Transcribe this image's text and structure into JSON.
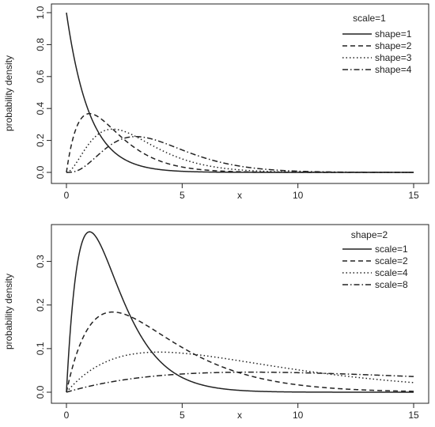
{
  "chart_data": [
    {
      "type": "line",
      "title": "",
      "xlabel": "x",
      "ylabel": "probability density",
      "xlim": [
        0,
        15
      ],
      "ylim": [
        0,
        1.0
      ],
      "xticks": [
        0,
        5,
        10,
        15
      ],
      "yticks": [
        0.0,
        0.2,
        0.4,
        0.6,
        0.8,
        1.0
      ],
      "ytick_labels": [
        "0.0",
        "0.2",
        "0.4",
        "0.6",
        "0.8",
        "1.0"
      ],
      "legend_title": "scale=1",
      "legend_position": "top-right",
      "grid": false,
      "series": [
        {
          "name": "shape=1",
          "dash": "solid",
          "shape": 1,
          "scale": 1
        },
        {
          "name": "shape=2",
          "dash": "dashed",
          "shape": 2,
          "scale": 1
        },
        {
          "name": "shape=3",
          "dash": "dotted",
          "shape": 3,
          "scale": 1
        },
        {
          "name": "shape=4",
          "dash": "dotdash",
          "shape": 4,
          "scale": 1
        }
      ]
    },
    {
      "type": "line",
      "title": "",
      "xlabel": "x",
      "ylabel": "probability density",
      "xlim": [
        0,
        15
      ],
      "ylim": [
        0,
        0.37
      ],
      "xticks": [
        0,
        5,
        10,
        15
      ],
      "yticks": [
        0.0,
        0.1,
        0.2,
        0.3
      ],
      "ytick_labels": [
        "0.0",
        "0.1",
        "0.2",
        "0.3"
      ],
      "legend_title": "shape=2",
      "legend_position": "top-right",
      "grid": false,
      "series": [
        {
          "name": "scale=1",
          "dash": "solid",
          "shape": 2,
          "scale": 1
        },
        {
          "name": "scale=2",
          "dash": "dashed",
          "shape": 2,
          "scale": 2
        },
        {
          "name": "scale=4",
          "dash": "dotted",
          "shape": 2,
          "scale": 4
        },
        {
          "name": "scale=8",
          "dash": "dotdash",
          "shape": 2,
          "scale": 8
        }
      ]
    }
  ]
}
